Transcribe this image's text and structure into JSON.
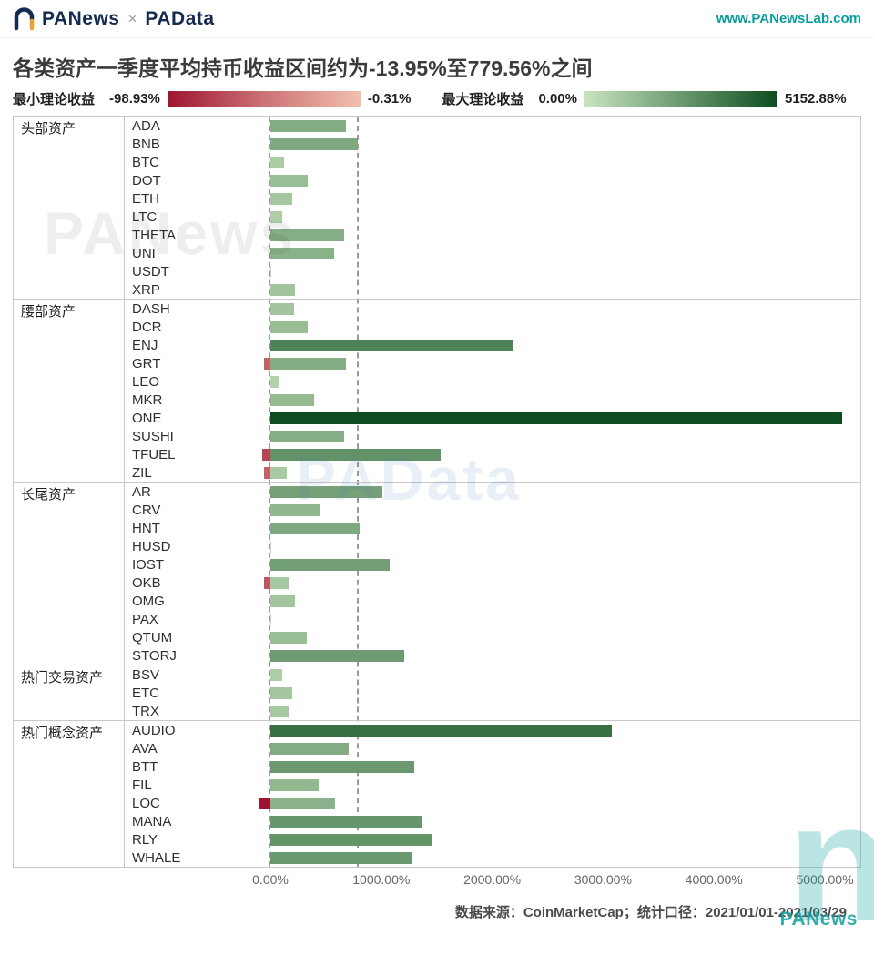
{
  "header": {
    "brand_left": "PANews",
    "brand_sep": "×",
    "brand_right": "PAData",
    "url": "www.PANewsLab.com"
  },
  "title": "各类资产一季度平均持币收益区间约为-13.95%至779.56%之间",
  "legend": {
    "min_label": "最小理论收益",
    "min_start": "-98.93%",
    "min_end": "-0.31%",
    "max_label": "最大理论收益",
    "max_start": "0.00%",
    "max_end": "5152.88%"
  },
  "colors": {
    "teal": "#0a9d9d",
    "navy": "#152b50",
    "orange": "#e8a33d",
    "red_light": "#f2bfae",
    "red_dark": "#9e1430",
    "green_light": "#c8e4be",
    "green_dark": "#0e4d1f",
    "grid": "#c9c9c9",
    "dash_line": "#9a9a9a"
  },
  "watermarks": {
    "top": "PANews",
    "middle": "PAData",
    "corner_glyph": "n",
    "corner_text": "PANews"
  },
  "footer": {
    "source": "数据来源：CoinMarketCap；统计口径：2021/01/01-2021/03/29"
  },
  "chart_data": {
    "type": "bar",
    "orientation": "horizontal",
    "title": "各类资产一季度平均持币收益区间约为-13.95%至779.56%之间",
    "x_axis": {
      "ticks": [
        0,
        1000,
        2000,
        3000,
        4000,
        5000
      ],
      "tick_labels": [
        "0.00%",
        "1000.00%",
        "2000.00%",
        "3000.00%",
        "4000.00%",
        "5000.00%"
      ]
    },
    "xlim": [
      -600,
      5330
    ],
    "reference_lines": [
      -13.95,
      779.56
    ],
    "value_scale": {
      "green_max": 5152.88,
      "red_max": 98.93
    },
    "series_legend": [
      "最小理论收益",
      "最大理论收益"
    ],
    "groups": [
      {
        "label": "头部资产",
        "assets": [
          {
            "name": "ADA",
            "max": 680,
            "min": null
          },
          {
            "name": "BNB",
            "max": 790,
            "min": null
          },
          {
            "name": "BTC",
            "max": 125,
            "min": null
          },
          {
            "name": "DOT",
            "max": 335,
            "min": null
          },
          {
            "name": "ETH",
            "max": 195,
            "min": null
          },
          {
            "name": "LTC",
            "max": 110,
            "min": null
          },
          {
            "name": "THETA",
            "max": 665,
            "min": null
          },
          {
            "name": "UNI",
            "max": 575,
            "min": null
          },
          {
            "name": "USDT",
            "max": 10,
            "min": null
          },
          {
            "name": "XRP",
            "max": 220,
            "min": null
          }
        ]
      },
      {
        "label": "腰部资产",
        "assets": [
          {
            "name": "DASH",
            "max": 215,
            "min": null
          },
          {
            "name": "DCR",
            "max": 335,
            "min": null
          },
          {
            "name": "ENJ",
            "max": 2180,
            "min": null
          },
          {
            "name": "GRT",
            "max": 680,
            "min": -55
          },
          {
            "name": "LEO",
            "max": 75,
            "min": null
          },
          {
            "name": "MKR",
            "max": 395,
            "min": null
          },
          {
            "name": "ONE",
            "max": 5152.88,
            "min": null
          },
          {
            "name": "SUSHI",
            "max": 665,
            "min": null
          },
          {
            "name": "TFUEL",
            "max": 1535,
            "min": -70
          },
          {
            "name": "ZIL",
            "max": 150,
            "min": -55
          }
        ]
      },
      {
        "label": "长尾资产",
        "assets": [
          {
            "name": "AR",
            "max": 1010,
            "min": null
          },
          {
            "name": "CRV",
            "max": 450,
            "min": null
          },
          {
            "name": "HNT",
            "max": 805,
            "min": null
          },
          {
            "name": "HUSD",
            "max": 10,
            "min": null
          },
          {
            "name": "IOST",
            "max": 1075,
            "min": null
          },
          {
            "name": "OKB",
            "max": 165,
            "min": -60
          },
          {
            "name": "OMG",
            "max": 220,
            "min": null
          },
          {
            "name": "PAX",
            "max": 10,
            "min": null
          },
          {
            "name": "QTUM",
            "max": 330,
            "min": null
          },
          {
            "name": "STORJ",
            "max": 1205,
            "min": null
          }
        ]
      },
      {
        "label": "热门交易资产",
        "assets": [
          {
            "name": "BSV",
            "max": 110,
            "min": null
          },
          {
            "name": "ETC",
            "max": 195,
            "min": null
          },
          {
            "name": "TRX",
            "max": 165,
            "min": null
          }
        ]
      },
      {
        "label": "热门概念资产",
        "assets": [
          {
            "name": "AUDIO",
            "max": 3075,
            "min": null
          },
          {
            "name": "AVA",
            "max": 705,
            "min": null
          },
          {
            "name": "BTT",
            "max": 1295,
            "min": null
          },
          {
            "name": "FIL",
            "max": 435,
            "min": null
          },
          {
            "name": "LOC",
            "max": 580,
            "min": -98.93
          },
          {
            "name": "MANA",
            "max": 1370,
            "min": null
          },
          {
            "name": "RLY",
            "max": 1460,
            "min": null
          },
          {
            "name": "WHALE",
            "max": 1280,
            "min": null
          }
        ]
      }
    ]
  }
}
